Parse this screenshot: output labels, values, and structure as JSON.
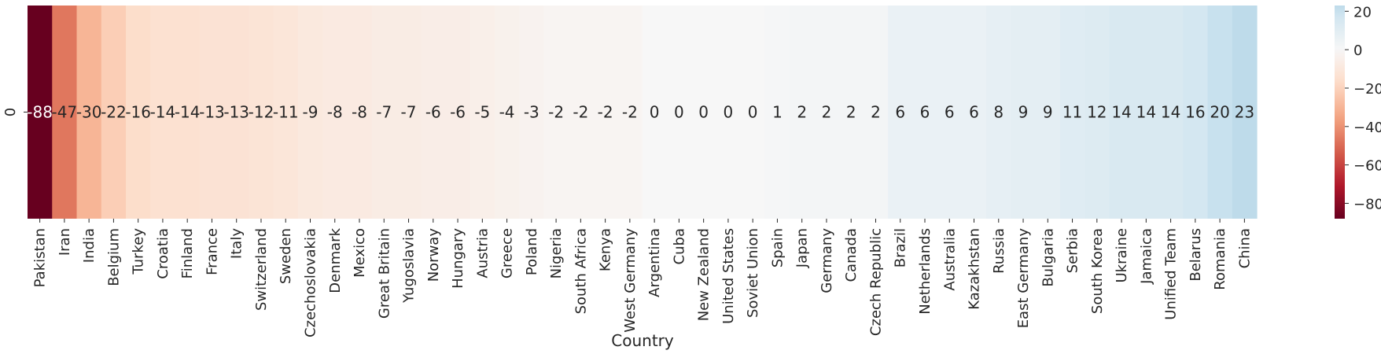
{
  "chart_data": {
    "type": "heatmap",
    "title": "",
    "xlabel": "Country",
    "ylabel": "",
    "row_labels": [
      "0"
    ],
    "categories": [
      "Pakistan",
      "Iran",
      "India",
      "Belgium",
      "Turkey",
      "Croatia",
      "Finland",
      "France",
      "Italy",
      "Switzerland",
      "Sweden",
      "Czechoslovakia",
      "Denmark",
      "Mexico",
      "Great Britain",
      "Yugoslavia",
      "Norway",
      "Hungary",
      "Austria",
      "Greece",
      "Poland",
      "Nigeria",
      "South Africa",
      "Kenya",
      "West Germany",
      "Argentina",
      "Cuba",
      "New Zealand",
      "United States",
      "Soviet Union",
      "Spain",
      "Japan",
      "Germany",
      "Canada",
      "Czech Republic",
      "Brazil",
      "Netherlands",
      "Australia",
      "Kazakhstan",
      "Russia",
      "East Germany",
      "Bulgaria",
      "Serbia",
      "South Korea",
      "Ukraine",
      "Jamaica",
      "Unified Team",
      "Belarus",
      "Romania",
      "China"
    ],
    "values": [
      -88,
      -47,
      -30,
      -22,
      -16,
      -14,
      -14,
      -13,
      -13,
      -12,
      -11,
      -9,
      -8,
      -8,
      -7,
      -7,
      -6,
      -6,
      -5,
      -4,
      -3,
      -2,
      -2,
      -2,
      -2,
      0,
      0,
      0,
      0,
      0,
      1,
      2,
      2,
      2,
      2,
      6,
      6,
      6,
      6,
      8,
      9,
      9,
      11,
      12,
      14,
      14,
      14,
      16,
      20,
      23
    ],
    "colorbar": {
      "min": -88,
      "max": 23,
      "ticks": [
        20,
        0,
        -20,
        -40,
        -60,
        -80
      ],
      "colormap": "RdBu"
    },
    "grid": false
  }
}
